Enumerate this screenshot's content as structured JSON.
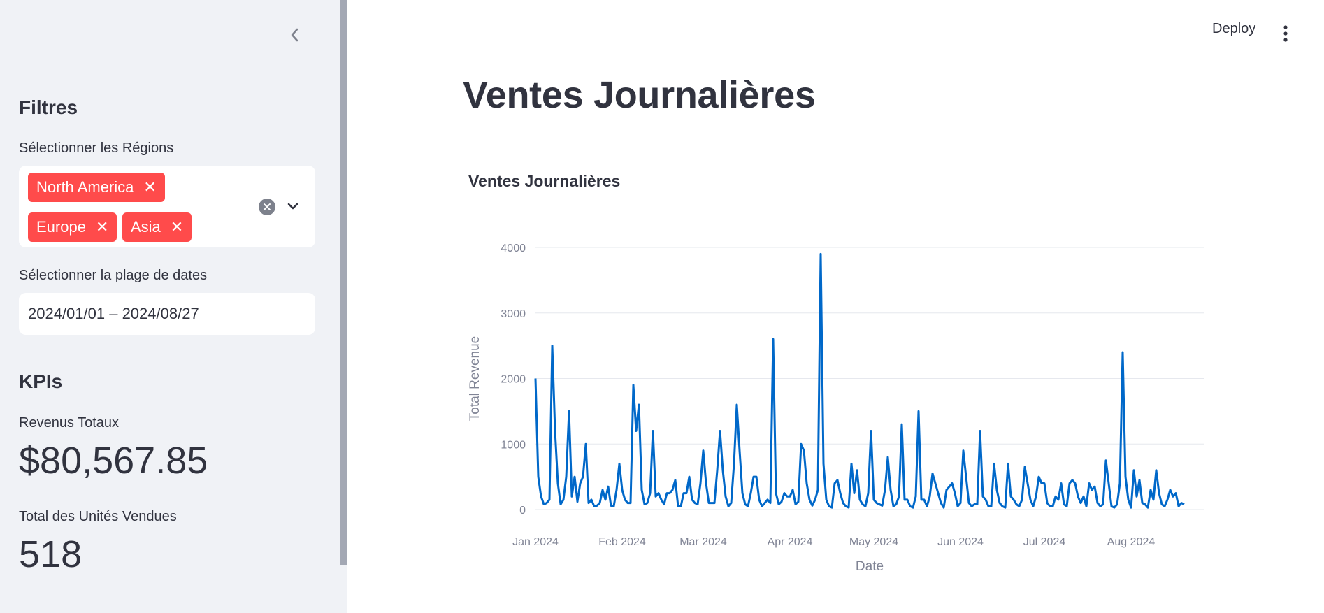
{
  "sidebar": {
    "filters_heading": "Filtres",
    "regions_label": "Sélectionner les Régions",
    "regions_selected": [
      "North America",
      "Europe",
      "Asia"
    ],
    "date_label": "Sélectionner la plage de dates",
    "date_value": "2024/01/01 – 2024/08/27",
    "kpis_heading": "KPIs",
    "revenue_label": "Revenus Totaux",
    "revenue_value": "$80,567.85",
    "units_label": "Total des Unités Vendues",
    "units_value": "518"
  },
  "header": {
    "deploy_label": "Deploy"
  },
  "main": {
    "page_title": "Ventes Journalières"
  },
  "colors": {
    "accent": "#ff4b4b",
    "line": "#0068c9",
    "sidebar_bg": "#f0f2f6"
  },
  "chart_data": {
    "type": "line",
    "title": "Ventes Journalières",
    "xlabel": "Date",
    "ylabel": "Total Revenue",
    "ylim": [
      0,
      4000
    ],
    "y_ticks": [
      "0",
      "1000",
      "2000",
      "3000",
      "4000"
    ],
    "x_ticks": [
      "Jan 2024",
      "Feb 2024",
      "Mar 2024",
      "Apr 2024",
      "May 2024",
      "Jun 2024",
      "Jul 2024",
      "Aug 2024"
    ],
    "x_tick_dates": [
      "2024-01-01",
      "2024-02-01",
      "2024-03-01",
      "2024-04-01",
      "2024-05-01",
      "2024-06-01",
      "2024-07-01",
      "2024-08-01"
    ],
    "grid": true,
    "series": [
      {
        "points": [
          [
            "2024-01-01",
            2000
          ],
          [
            "2024-01-02",
            500
          ],
          [
            "2024-01-03",
            200
          ],
          [
            "2024-01-04",
            80
          ],
          [
            "2024-01-05",
            100
          ],
          [
            "2024-01-06",
            150
          ],
          [
            "2024-01-07",
            2500
          ],
          [
            "2024-01-08",
            1200
          ],
          [
            "2024-01-09",
            400
          ],
          [
            "2024-01-10",
            80
          ],
          [
            "2024-01-11",
            150
          ],
          [
            "2024-01-12",
            500
          ],
          [
            "2024-01-13",
            1500
          ],
          [
            "2024-01-14",
            200
          ],
          [
            "2024-01-15",
            500
          ],
          [
            "2024-01-16",
            120
          ],
          [
            "2024-01-17",
            400
          ],
          [
            "2024-01-18",
            500
          ],
          [
            "2024-01-19",
            1000
          ],
          [
            "2024-01-20",
            100
          ],
          [
            "2024-01-21",
            150
          ],
          [
            "2024-01-22",
            50
          ],
          [
            "2024-01-23",
            60
          ],
          [
            "2024-01-24",
            100
          ],
          [
            "2024-01-25",
            300
          ],
          [
            "2024-01-26",
            150
          ],
          [
            "2024-01-27",
            350
          ],
          [
            "2024-01-28",
            60
          ],
          [
            "2024-01-29",
            50
          ],
          [
            "2024-01-30",
            300
          ],
          [
            "2024-01-31",
            700
          ],
          [
            "2024-02-01",
            300
          ],
          [
            "2024-02-02",
            150
          ],
          [
            "2024-02-03",
            100
          ],
          [
            "2024-02-04",
            100
          ],
          [
            "2024-02-05",
            1900
          ],
          [
            "2024-02-06",
            1200
          ],
          [
            "2024-02-07",
            1600
          ],
          [
            "2024-02-08",
            300
          ],
          [
            "2024-02-09",
            80
          ],
          [
            "2024-02-10",
            100
          ],
          [
            "2024-02-11",
            250
          ],
          [
            "2024-02-12",
            1200
          ],
          [
            "2024-02-13",
            200
          ],
          [
            "2024-02-14",
            250
          ],
          [
            "2024-02-15",
            150
          ],
          [
            "2024-02-16",
            80
          ],
          [
            "2024-02-17",
            250
          ],
          [
            "2024-02-18",
            250
          ],
          [
            "2024-02-19",
            300
          ],
          [
            "2024-02-20",
            450
          ],
          [
            "2024-02-21",
            50
          ],
          [
            "2024-02-22",
            50
          ],
          [
            "2024-02-23",
            250
          ],
          [
            "2024-02-24",
            250
          ],
          [
            "2024-02-25",
            500
          ],
          [
            "2024-02-26",
            150
          ],
          [
            "2024-02-27",
            100
          ],
          [
            "2024-02-28",
            80
          ],
          [
            "2024-02-29",
            400
          ],
          [
            "2024-03-01",
            900
          ],
          [
            "2024-03-02",
            400
          ],
          [
            "2024-03-03",
            100
          ],
          [
            "2024-03-04",
            100
          ],
          [
            "2024-03-05",
            100
          ],
          [
            "2024-03-06",
            600
          ],
          [
            "2024-03-07",
            1200
          ],
          [
            "2024-03-08",
            600
          ],
          [
            "2024-03-09",
            200
          ],
          [
            "2024-03-10",
            50
          ],
          [
            "2024-03-11",
            100
          ],
          [
            "2024-03-12",
            700
          ],
          [
            "2024-03-13",
            1600
          ],
          [
            "2024-03-14",
            900
          ],
          [
            "2024-03-15",
            250
          ],
          [
            "2024-03-16",
            80
          ],
          [
            "2024-03-17",
            50
          ],
          [
            "2024-03-18",
            250
          ],
          [
            "2024-03-19",
            500
          ],
          [
            "2024-03-20",
            500
          ],
          [
            "2024-03-21",
            150
          ],
          [
            "2024-03-22",
            50
          ],
          [
            "2024-03-23",
            100
          ],
          [
            "2024-03-24",
            150
          ],
          [
            "2024-03-25",
            100
          ],
          [
            "2024-03-26",
            2600
          ],
          [
            "2024-03-27",
            250
          ],
          [
            "2024-03-28",
            80
          ],
          [
            "2024-03-29",
            120
          ],
          [
            "2024-03-30",
            250
          ],
          [
            "2024-03-31",
            200
          ],
          [
            "2024-04-01",
            200
          ],
          [
            "2024-04-02",
            300
          ],
          [
            "2024-04-03",
            80
          ],
          [
            "2024-04-04",
            120
          ],
          [
            "2024-04-05",
            1000
          ],
          [
            "2024-04-06",
            900
          ],
          [
            "2024-04-07",
            400
          ],
          [
            "2024-04-08",
            150
          ],
          [
            "2024-04-09",
            60
          ],
          [
            "2024-04-10",
            150
          ],
          [
            "2024-04-11",
            300
          ],
          [
            "2024-04-12",
            3900
          ],
          [
            "2024-04-13",
            700
          ],
          [
            "2024-04-14",
            150
          ],
          [
            "2024-04-15",
            50
          ],
          [
            "2024-04-16",
            30
          ],
          [
            "2024-04-17",
            400
          ],
          [
            "2024-04-18",
            450
          ],
          [
            "2024-04-19",
            250
          ],
          [
            "2024-04-20",
            100
          ],
          [
            "2024-04-21",
            50
          ],
          [
            "2024-04-22",
            30
          ],
          [
            "2024-04-23",
            700
          ],
          [
            "2024-04-24",
            250
          ],
          [
            "2024-04-25",
            600
          ],
          [
            "2024-04-26",
            150
          ],
          [
            "2024-04-27",
            80
          ],
          [
            "2024-04-28",
            50
          ],
          [
            "2024-04-29",
            250
          ],
          [
            "2024-04-30",
            1200
          ],
          [
            "2024-05-01",
            150
          ],
          [
            "2024-05-02",
            100
          ],
          [
            "2024-05-03",
            80
          ],
          [
            "2024-05-04",
            60
          ],
          [
            "2024-05-05",
            300
          ],
          [
            "2024-05-06",
            800
          ],
          [
            "2024-05-07",
            300
          ],
          [
            "2024-05-08",
            50
          ],
          [
            "2024-05-09",
            80
          ],
          [
            "2024-05-10",
            200
          ],
          [
            "2024-05-11",
            1300
          ],
          [
            "2024-05-12",
            150
          ],
          [
            "2024-05-13",
            150
          ],
          [
            "2024-05-14",
            50
          ],
          [
            "2024-05-15",
            30
          ],
          [
            "2024-05-16",
            200
          ],
          [
            "2024-05-17",
            1500
          ],
          [
            "2024-05-18",
            150
          ],
          [
            "2024-05-19",
            150
          ],
          [
            "2024-05-20",
            50
          ],
          [
            "2024-05-21",
            200
          ],
          [
            "2024-05-22",
            550
          ],
          [
            "2024-05-23",
            400
          ],
          [
            "2024-05-24",
            250
          ],
          [
            "2024-05-25",
            100
          ],
          [
            "2024-05-26",
            30
          ],
          [
            "2024-05-27",
            300
          ],
          [
            "2024-05-28",
            350
          ],
          [
            "2024-05-29",
            400
          ],
          [
            "2024-05-30",
            250
          ],
          [
            "2024-05-31",
            50
          ],
          [
            "2024-06-01",
            100
          ],
          [
            "2024-06-02",
            900
          ],
          [
            "2024-06-03",
            500
          ],
          [
            "2024-06-04",
            100
          ],
          [
            "2024-06-05",
            50
          ],
          [
            "2024-06-06",
            80
          ],
          [
            "2024-06-07",
            80
          ],
          [
            "2024-06-08",
            1200
          ],
          [
            "2024-06-09",
            200
          ],
          [
            "2024-06-10",
            150
          ],
          [
            "2024-06-11",
            50
          ],
          [
            "2024-06-12",
            50
          ],
          [
            "2024-06-13",
            700
          ],
          [
            "2024-06-14",
            300
          ],
          [
            "2024-06-15",
            100
          ],
          [
            "2024-06-16",
            50
          ],
          [
            "2024-06-17",
            30
          ],
          [
            "2024-06-18",
            700
          ],
          [
            "2024-06-19",
            200
          ],
          [
            "2024-06-20",
            150
          ],
          [
            "2024-06-21",
            80
          ],
          [
            "2024-06-22",
            50
          ],
          [
            "2024-06-23",
            150
          ],
          [
            "2024-06-24",
            650
          ],
          [
            "2024-06-25",
            400
          ],
          [
            "2024-06-26",
            150
          ],
          [
            "2024-06-27",
            50
          ],
          [
            "2024-06-28",
            200
          ],
          [
            "2024-06-29",
            500
          ],
          [
            "2024-06-30",
            400
          ],
          [
            "2024-07-01",
            400
          ],
          [
            "2024-07-02",
            100
          ],
          [
            "2024-07-03",
            50
          ],
          [
            "2024-07-04",
            50
          ],
          [
            "2024-07-05",
            200
          ],
          [
            "2024-07-06",
            150
          ],
          [
            "2024-07-07",
            400
          ],
          [
            "2024-07-08",
            80
          ],
          [
            "2024-07-09",
            50
          ],
          [
            "2024-07-10",
            400
          ],
          [
            "2024-07-11",
            450
          ],
          [
            "2024-07-12",
            400
          ],
          [
            "2024-07-13",
            200
          ],
          [
            "2024-07-14",
            100
          ],
          [
            "2024-07-15",
            200
          ],
          [
            "2024-07-16",
            50
          ],
          [
            "2024-07-17",
            400
          ],
          [
            "2024-07-18",
            300
          ],
          [
            "2024-07-19",
            350
          ],
          [
            "2024-07-20",
            100
          ],
          [
            "2024-07-21",
            50
          ],
          [
            "2024-07-22",
            80
          ],
          [
            "2024-07-23",
            750
          ],
          [
            "2024-07-24",
            400
          ],
          [
            "2024-07-25",
            50
          ],
          [
            "2024-07-26",
            30
          ],
          [
            "2024-07-27",
            80
          ],
          [
            "2024-07-28",
            400
          ],
          [
            "2024-07-29",
            2400
          ],
          [
            "2024-07-30",
            500
          ],
          [
            "2024-07-31",
            150
          ],
          [
            "2024-08-01",
            30
          ],
          [
            "2024-08-02",
            600
          ],
          [
            "2024-08-03",
            200
          ],
          [
            "2024-08-04",
            450
          ],
          [
            "2024-08-05",
            100
          ],
          [
            "2024-08-06",
            80
          ],
          [
            "2024-08-07",
            30
          ],
          [
            "2024-08-08",
            300
          ],
          [
            "2024-08-09",
            150
          ],
          [
            "2024-08-10",
            600
          ],
          [
            "2024-08-11",
            250
          ],
          [
            "2024-08-12",
            80
          ],
          [
            "2024-08-13",
            50
          ],
          [
            "2024-08-14",
            150
          ],
          [
            "2024-08-15",
            300
          ],
          [
            "2024-08-16",
            200
          ],
          [
            "2024-08-17",
            250
          ],
          [
            "2024-08-18",
            50
          ],
          [
            "2024-08-19",
            100
          ],
          [
            "2024-08-20",
            80
          ]
        ]
      }
    ]
  }
}
